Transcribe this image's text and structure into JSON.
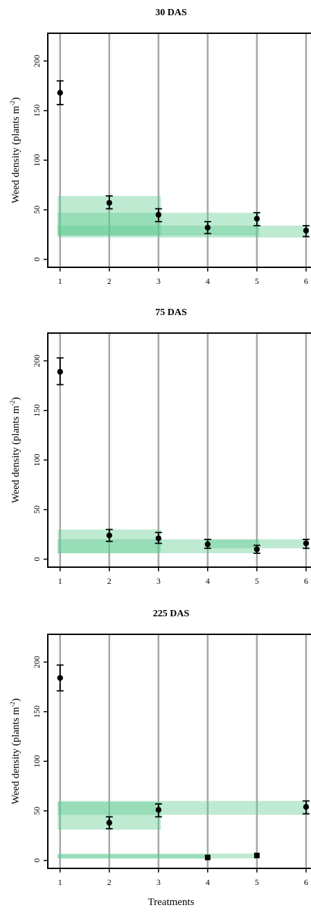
{
  "chart_data": [
    {
      "type": "scatter",
      "title": "30 DAS",
      "xlabel": "",
      "ylabel_main": "Weed density (plants m",
      "ylabel_sup": "-2",
      "ylabel_close": ")",
      "x_ticks": [
        "1",
        "2",
        "3",
        "4",
        "5",
        "6"
      ],
      "y_ticks": [
        "0",
        "50",
        "100",
        "150",
        "200"
      ],
      "xlim": [
        0.75,
        6.1
      ],
      "ylim": [
        -8,
        228
      ],
      "points": [
        {
          "x": 1,
          "y": 168,
          "lo": 156,
          "hi": 180,
          "marker": "circle"
        },
        {
          "x": 2,
          "y": 57,
          "lo": 51,
          "hi": 64,
          "marker": "circle"
        },
        {
          "x": 3,
          "y": 45,
          "lo": 38,
          "hi": 51,
          "marker": "circle"
        },
        {
          "x": 4,
          "y": 32,
          "lo": 26,
          "hi": 38,
          "marker": "circle"
        },
        {
          "x": 5,
          "y": 41,
          "lo": 34,
          "hi": 47,
          "marker": "circle"
        },
        {
          "x": 6,
          "y": 29,
          "lo": 23,
          "hi": 34,
          "marker": "circle"
        }
      ],
      "bands": [
        {
          "x_start": 1,
          "x_end": 3,
          "y_low": 24,
          "y_high": 64
        },
        {
          "x_start": 1,
          "x_end": 5,
          "y_low": 24,
          "y_high": 47
        },
        {
          "x_start": 1,
          "x_end": 6,
          "y_low": 22,
          "y_high": 34
        }
      ]
    },
    {
      "type": "scatter",
      "title": "75 DAS",
      "xlabel": "",
      "ylabel_main": "Weed density (plants m",
      "ylabel_sup": "-2",
      "ylabel_close": ")",
      "x_ticks": [
        "1",
        "2",
        "3",
        "4",
        "5",
        "6"
      ],
      "y_ticks": [
        "0",
        "50",
        "100",
        "150",
        "200"
      ],
      "xlim": [
        0.75,
        6.1
      ],
      "ylim": [
        -8,
        228
      ],
      "points": [
        {
          "x": 1,
          "y": 189,
          "lo": 176,
          "hi": 203,
          "marker": "circle"
        },
        {
          "x": 2,
          "y": 24,
          "lo": 18,
          "hi": 30,
          "marker": "circle"
        },
        {
          "x": 3,
          "y": 21,
          "lo": 16,
          "hi": 27,
          "marker": "circle"
        },
        {
          "x": 4,
          "y": 15,
          "lo": 11,
          "hi": 20,
          "marker": "circle"
        },
        {
          "x": 5,
          "y": 10,
          "lo": 6,
          "hi": 14,
          "marker": "circle"
        },
        {
          "x": 6,
          "y": 16,
          "lo": 11,
          "hi": 20,
          "marker": "circle"
        }
      ],
      "bands": [
        {
          "x_start": 1,
          "x_end": 3,
          "y_low": 6,
          "y_high": 30
        },
        {
          "x_start": 1,
          "x_end": 5,
          "y_low": 6,
          "y_high": 20
        },
        {
          "x_start": 4,
          "x_end": 6,
          "y_low": 11,
          "y_high": 20
        }
      ]
    },
    {
      "type": "scatter",
      "title": "225 DAS",
      "xlabel": "Treatments",
      "ylabel_main": "Weed density (plants m",
      "ylabel_sup": "-2",
      "ylabel_close": ")",
      "x_ticks": [
        "1",
        "2",
        "3",
        "4",
        "5",
        "6"
      ],
      "y_ticks": [
        "0",
        "50",
        "100",
        "150",
        "200"
      ],
      "xlim": [
        0.75,
        6.1
      ],
      "ylim": [
        -8,
        228
      ],
      "points": [
        {
          "x": 1,
          "y": 184,
          "lo": 171,
          "hi": 197,
          "marker": "circle"
        },
        {
          "x": 2,
          "y": 38,
          "lo": 32,
          "hi": 44,
          "marker": "circle"
        },
        {
          "x": 3,
          "y": 51,
          "lo": 44,
          "hi": 57,
          "marker": "circle"
        },
        {
          "x": 4,
          "y": 3,
          "lo": 3,
          "hi": 3,
          "marker": "square"
        },
        {
          "x": 5,
          "y": 5,
          "lo": 5,
          "hi": 5,
          "marker": "square"
        },
        {
          "x": 6,
          "y": 54,
          "lo": 47,
          "hi": 60,
          "marker": "circle"
        }
      ],
      "bands": [
        {
          "x_start": 1,
          "x_end": 3,
          "y_low": 31,
          "y_high": 59
        },
        {
          "x_start": 1,
          "x_end": 6,
          "y_low": 46,
          "y_high": 60
        },
        {
          "x_start": 1,
          "x_end": 5,
          "y_low": 2,
          "y_high": 7
        },
        {
          "x_start": 1,
          "x_end": 4,
          "y_low": 2,
          "y_high": 6
        }
      ]
    }
  ],
  "colors": {
    "band_fill": "#5ccb8e",
    "gridline": "#a6a6a6",
    "axis": "#000000",
    "marker": "#000000"
  }
}
